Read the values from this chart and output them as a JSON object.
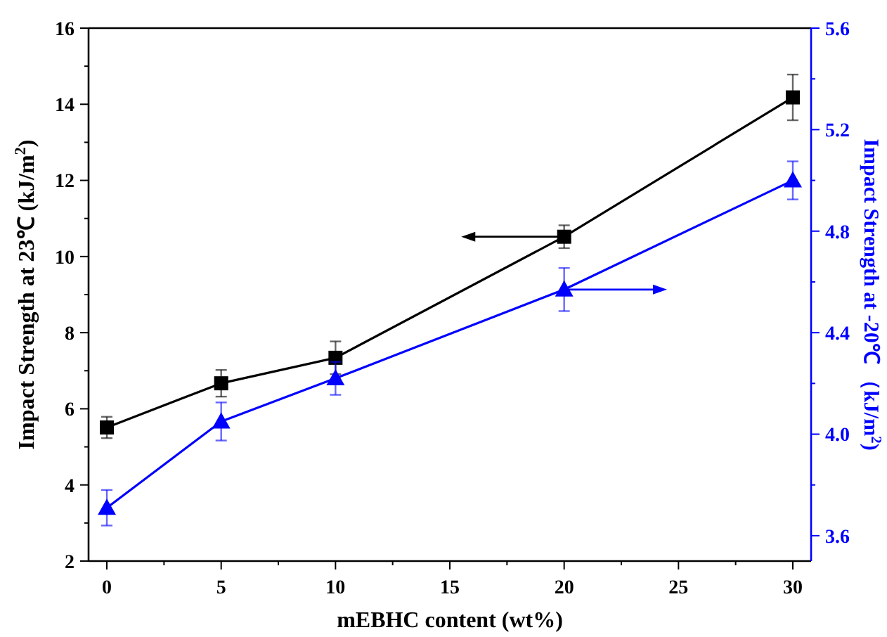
{
  "chart_data": {
    "type": "line",
    "xlabel": "mEBHC content (wt%)",
    "ylabel": "Impact Strength at 23℃  (kJ/m$^{2}$)",
    "y2label": "Impact Strength at -20℃ （kJ/m$^{2}$)",
    "x": [
      0,
      5,
      10,
      20,
      30
    ],
    "series": [
      {
        "color": "#000000",
        "marker": "square",
        "values": [
          5.51,
          6.67,
          7.34,
          10.52,
          14.18
        ],
        "errors": [
          0.28,
          0.35,
          0.43,
          0.3,
          0.6
        ]
      },
      {
        "color": "#0000ff",
        "marker": "triangle",
        "axis": "y2",
        "values": [
          3.71,
          4.05,
          4.22,
          4.57,
          5.0
        ],
        "errors": [
          0.07,
          0.075,
          0.065,
          0.085,
          0.075
        ]
      }
    ],
    "xlim": [
      -0.8,
      30.8
    ],
    "xticks": [
      0,
      {
        "value": 2.5,
        "label": null
      },
      5,
      {
        "value": 7.5,
        "label": null
      },
      10,
      {
        "value": 12.5,
        "label": null
      },
      15,
      {
        "value": 17.5,
        "label": null
      },
      20,
      {
        "value": 22.5,
        "label": null
      },
      25,
      {
        "value": 27.5,
        "label": null
      },
      30
    ],
    "ylim": [
      2,
      16
    ],
    "yticks": [
      2,
      {
        "value": 3,
        "label": null
      },
      4,
      {
        "value": 5,
        "label": null
      },
      6,
      {
        "value": 7,
        "label": null
      },
      8,
      {
        "value": 9,
        "label": null
      },
      10,
      {
        "value": 11,
        "label": null
      },
      12,
      {
        "value": 13,
        "label": null
      },
      14,
      {
        "value": 15,
        "label": null
      },
      16
    ],
    "y2lim": [
      3.5,
      5.6
    ],
    "y2ticks": [
      {
        "value": 3.6,
        "label": "3.6"
      },
      {
        "value": 3.8,
        "label": null
      },
      {
        "value": 4.0,
        "label": "4.0"
      },
      {
        "value": 4.2,
        "label": null
      },
      {
        "value": 4.4,
        "label": "4.4"
      },
      {
        "value": 4.6,
        "label": null
      },
      {
        "value": 4.8,
        "label": "4.8"
      },
      {
        "value": 5.0,
        "label": null
      },
      {
        "value": 5.2,
        "label": "5.2"
      },
      {
        "value": 5.4,
        "label": null
      },
      {
        "value": 5.6,
        "label": "5.6"
      }
    ],
    "grid": false,
    "line_style": "solid"
  }
}
